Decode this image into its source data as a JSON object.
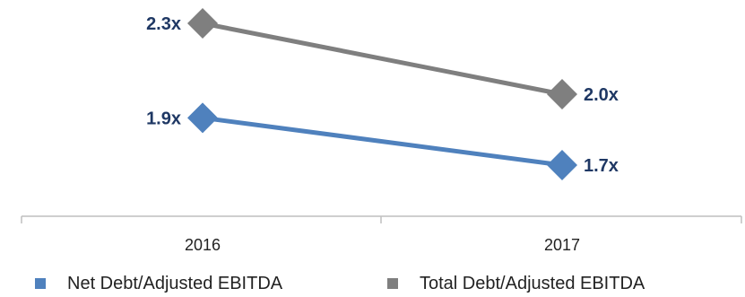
{
  "chart_data": {
    "type": "line",
    "categories": [
      "2016",
      "2017"
    ],
    "series": [
      {
        "name": "Net Debt/Adjusted EBITDA",
        "values": [
          1.9,
          1.7
        ],
        "labels": [
          "1.9x",
          "1.7x"
        ],
        "color": "#4f81bd"
      },
      {
        "name": "Total Debt/Adjusted EBITDA",
        "values": [
          2.3,
          2.0
        ],
        "labels": [
          "2.3x",
          "2.0x"
        ],
        "color": "#7f7f7f"
      }
    ],
    "title": "",
    "xlabel": "",
    "ylabel": "",
    "grid": false,
    "legend": "bottom",
    "marker": "diamond"
  }
}
